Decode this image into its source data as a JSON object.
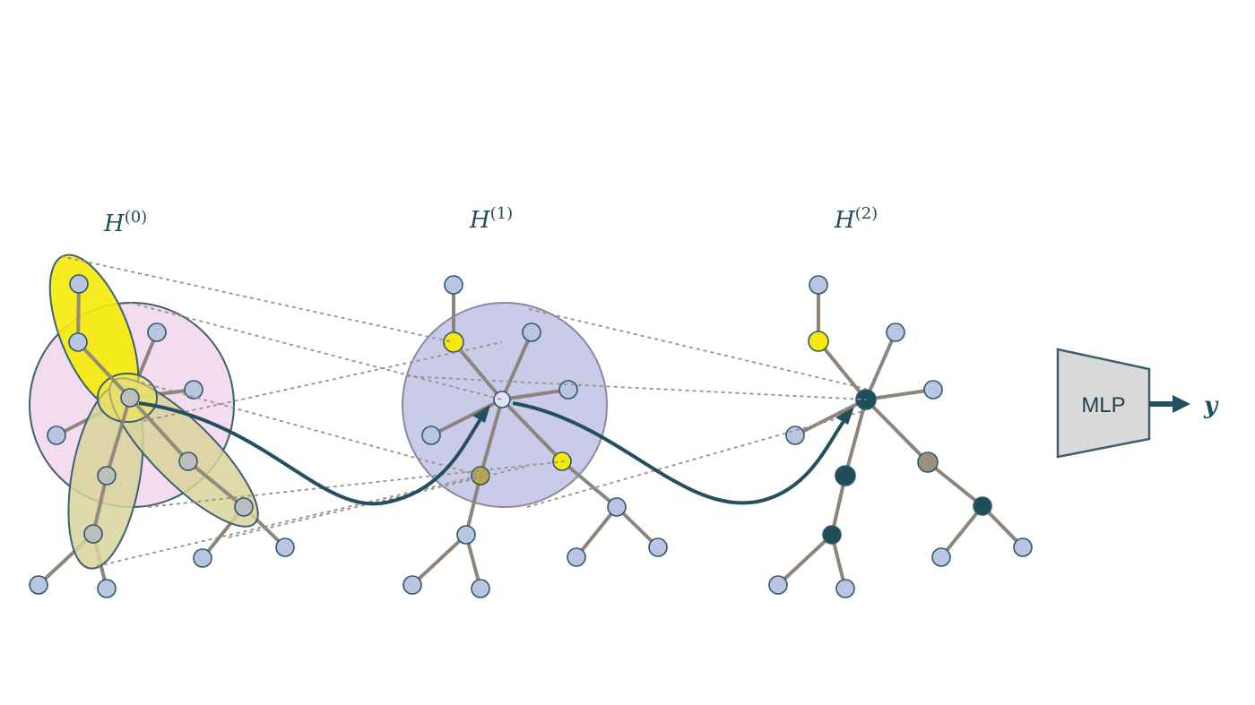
{
  "layers": [
    {
      "id": "h0",
      "label_base": "H",
      "label_sup": "(0)"
    },
    {
      "id": "h1",
      "label_base": "H",
      "label_sup": "(1)"
    },
    {
      "id": "h2",
      "label_base": "H",
      "label_sup": "(2)"
    }
  ],
  "mlp": {
    "label": "MLP"
  },
  "output": {
    "label": "y"
  },
  "colors": {
    "node_default": "#b9c5e3",
    "node_yellow": "#f5e90a",
    "node_olive": "#b8a84a",
    "node_dark_teal": "#1f4d5a",
    "node_taupe": "#9c8e80",
    "node_gray": "#bdbdbd",
    "edge": "#8d847c",
    "pink_region": "#f3dcef",
    "lavender_region": "#c9cbe8",
    "yellow_region": "#f5ea0c",
    "khaki_region": "#d8d39a",
    "arrow": "#24505e",
    "mlp_fill": "#d9d9d9"
  },
  "icons": [
    "arrow-right-icon"
  ]
}
